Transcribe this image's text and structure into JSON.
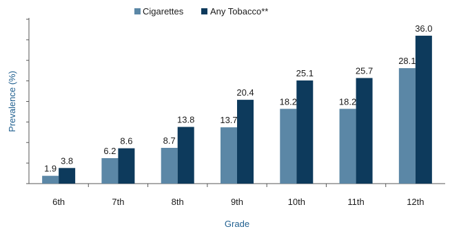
{
  "chart_data": {
    "type": "bar",
    "categories": [
      "6th",
      "7th",
      "8th",
      "9th",
      "10th",
      "11th",
      "12th"
    ],
    "series": [
      {
        "name": "Cigarettes",
        "values": [
          1.9,
          6.2,
          8.7,
          13.7,
          18.2,
          18.2,
          28.1
        ],
        "color": "#5b87a6"
      },
      {
        "name": "Any Tobacco**",
        "values": [
          3.8,
          8.6,
          13.8,
          20.4,
          25.1,
          25.7,
          36.0
        ],
        "color": "#0d3a5c"
      }
    ],
    "value_labels": [
      [
        "1.9",
        "6.2",
        "8.7",
        "13.7",
        "18.2",
        "18.2",
        "28.1"
      ],
      [
        "3.8",
        "8.6",
        "13.8",
        "20.4",
        "25.1",
        "25.7",
        "36.0"
      ]
    ],
    "xlabel": "Grade",
    "ylabel": "Prevalence (%)",
    "ylim": [
      0,
      40
    ],
    "y_tick_step": 5,
    "y_tick_labels_shown": false,
    "grid": false,
    "legend_position": "top-center"
  }
}
